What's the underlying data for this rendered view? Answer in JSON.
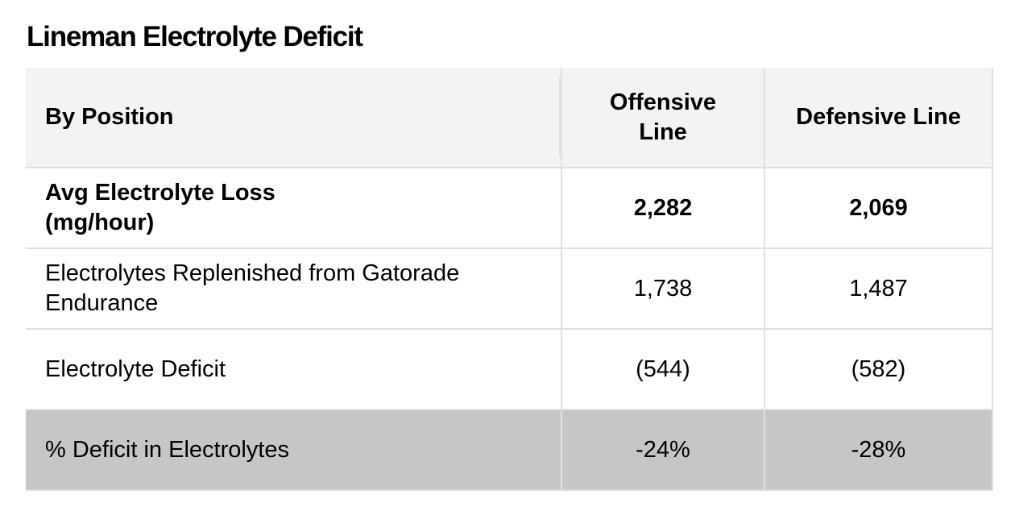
{
  "title": "Lineman Electrolyte Deficit",
  "table": {
    "headers": [
      "By Position",
      "Offensive Line",
      "Defensive Line"
    ],
    "rows": [
      {
        "label": "Avg Electrolyte Loss (mg/hour)",
        "values": [
          "2,282",
          "2,069"
        ],
        "bold": true
      },
      {
        "label": "Electrolytes Replenished from Gatorade Endurance",
        "values": [
          "1,738",
          "1,487"
        ]
      },
      {
        "label": "Electrolyte Deficit",
        "values": [
          "(544)",
          "(582)"
        ]
      },
      {
        "label": "% Deficit in Electrolytes",
        "values": [
          "-24%",
          "-28%"
        ],
        "shaded": true
      }
    ]
  },
  "colors": {
    "header_bg": "#f3f3f3",
    "shaded_row_bg": "#c6c6c6",
    "border": "#e0e0e0"
  }
}
